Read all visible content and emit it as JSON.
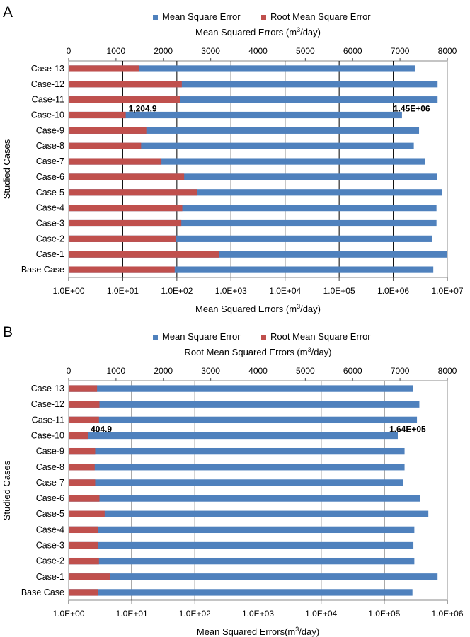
{
  "colors": {
    "mse": "#4F81BD",
    "rmse": "#C0504D",
    "grid": "#000000",
    "frame": "#888888"
  },
  "chart_data": [
    {
      "panel_label": "A",
      "type": "bar",
      "orientation": "horizontal",
      "legend": {
        "placement": "top",
        "items": [
          "Mean Square Error",
          "Root Mean Square Error"
        ]
      },
      "categories": [
        "Base Case",
        "Case-1",
        "Case-2",
        "Case-3",
        "Case-4",
        "Case-5",
        "Case-6",
        "Case-7",
        "Case-8",
        "Case-9",
        "Case-10",
        "Case-11",
        "Case-12",
        "Case-13"
      ],
      "ylabel": "Studied Cases",
      "top_axis": {
        "label_pre": "Mean Squared Errors (m",
        "label_sup": "3",
        "label_post": "/day)",
        "range": [
          0,
          8000
        ],
        "ticks": [
          "0",
          "1000",
          "2000",
          "3000",
          "4000",
          "5000",
          "6000",
          "7000",
          "8000"
        ]
      },
      "bottom_axis": {
        "label_pre": "Mean Squared Errors (m",
        "label_sup": "3",
        "label_post": "/day)",
        "scale": "log",
        "range": [
          1,
          10000000
        ],
        "ticks": [
          "1.0E+00",
          "1.0E+01",
          "1.0E+02",
          "1.0E+03",
          "1.0E+04",
          "1.0E+05",
          "1.0E+06",
          "1.0E+07"
        ]
      },
      "grid": true,
      "series": [
        {
          "name": "Mean Square Error",
          "axis": "bottom",
          "values": [
            5500000,
            10000000,
            5300000,
            6300000,
            6300000,
            7900000,
            6500000,
            3900000,
            2400000,
            3000000,
            1450000,
            6600000,
            6600000,
            2500000
          ]
        },
        {
          "name": "Root Mean Square Error",
          "axis": "top",
          "values": [
            2240,
            3180,
            2270,
            2380,
            2400,
            2720,
            2440,
            1960,
            1530,
            1640,
            1204.9,
            2360,
            2390,
            1480
          ]
        }
      ],
      "annotations": [
        {
          "text": "1,204.9",
          "category": "Case-10",
          "series": "Root Mean Square Error"
        },
        {
          "text": "1.45E+06",
          "category": "Case-10",
          "series": "Mean Square Error"
        }
      ]
    },
    {
      "panel_label": "B",
      "type": "bar",
      "orientation": "horizontal",
      "legend": {
        "placement": "top",
        "items": [
          "Mean Square Error",
          "Root Mean Square Error"
        ]
      },
      "categories": [
        "Base Case",
        "Case-1",
        "Case-2",
        "Case-3",
        "Case-4",
        "Case-5",
        "Case-6",
        "Case-7",
        "Case-8",
        "Case-9",
        "Case-10",
        "Case-11",
        "Case-12",
        "Case-13"
      ],
      "ylabel": "Studied Cases",
      "top_axis": {
        "label_pre": "Root Mean Squared Errors (m",
        "label_sup": "3",
        "label_post": "/day)",
        "range": [
          0,
          8000
        ],
        "ticks": [
          "0",
          "1000",
          "2000",
          "3000",
          "4000",
          "5000",
          "6000",
          "7000",
          "8000"
        ]
      },
      "bottom_axis": {
        "label_pre": "Mean Squared Errors(m",
        "label_sup": "3",
        "label_post": "/day)",
        "scale": "log",
        "range": [
          1,
          1000000
        ],
        "ticks": [
          "1.0E+00",
          "1.0E+01",
          "1.0E+02",
          "1.0E+03",
          "1.0E+04",
          "1.0E+05",
          "1.0E+06"
        ]
      },
      "grid": true,
      "series": [
        {
          "name": "Mean Square Error",
          "axis": "bottom",
          "values": [
            280000,
            700000,
            300000,
            290000,
            300000,
            500000,
            370000,
            200000,
            210000,
            210000,
            164000,
            330000,
            360000,
            285000
          ]
        },
        {
          "name": "Root Mean Square Error",
          "axis": "top",
          "values": [
            620,
            880,
            640,
            620,
            620,
            760,
            650,
            560,
            550,
            560,
            404.9,
            640,
            650,
            600
          ]
        }
      ],
      "annotations": [
        {
          "text": "404.9",
          "category": "Case-10",
          "series": "Root Mean Square Error"
        },
        {
          "text": "1.64E+05",
          "category": "Case-10",
          "series": "Mean Square Error"
        }
      ]
    }
  ]
}
